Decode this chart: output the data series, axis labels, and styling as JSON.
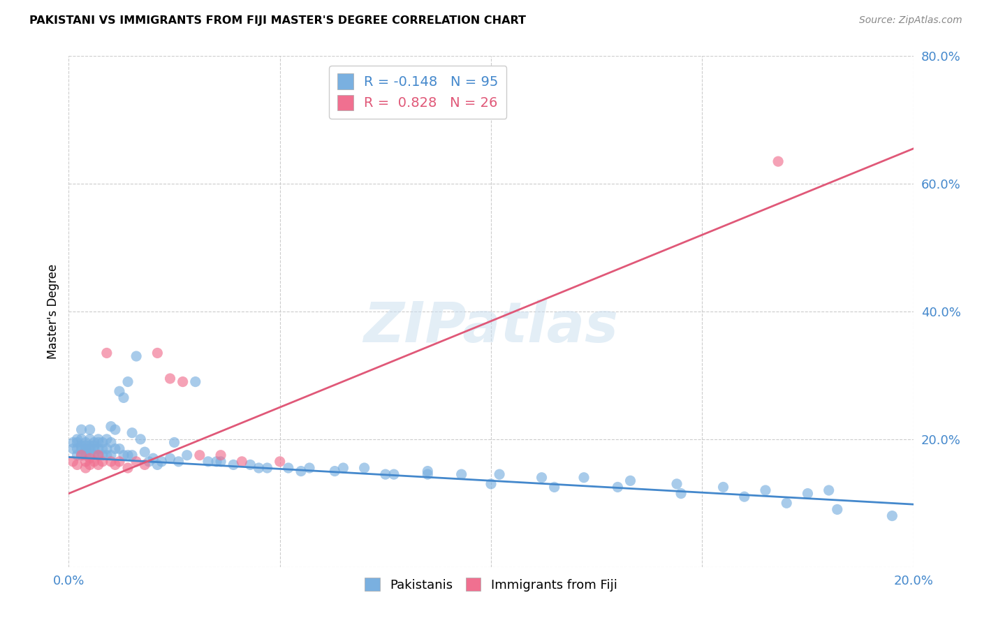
{
  "title": "PAKISTANI VS IMMIGRANTS FROM FIJI MASTER'S DEGREE CORRELATION CHART",
  "source": "Source: ZipAtlas.com",
  "ylabel": "Master's Degree",
  "xlim": [
    0.0,
    0.2
  ],
  "ylim": [
    0.0,
    0.8
  ],
  "xticks": [
    0.0,
    0.05,
    0.1,
    0.15,
    0.2
  ],
  "xticklabels": [
    "0.0%",
    "",
    "",
    "",
    "20.0%"
  ],
  "yticks": [
    0.0,
    0.2,
    0.4,
    0.6,
    0.8
  ],
  "yticklabels": [
    "",
    "20.0%",
    "40.0%",
    "60.0%",
    "80.0%"
  ],
  "blue_R": -0.148,
  "blue_N": 95,
  "pink_R": 0.828,
  "pink_N": 26,
  "blue_color": "#7ab0e0",
  "pink_color": "#f07090",
  "blue_line_color": "#4488cc",
  "pink_line_color": "#e05878",
  "tick_color": "#4488cc",
  "grid_color": "#cccccc",
  "watermark": "ZIPatlas",
  "legend_label_blue": "Pakistanis",
  "legend_label_pink": "Immigrants from Fiji",
  "blue_trend_x": [
    0.0,
    0.2
  ],
  "blue_trend_y": [
    0.172,
    0.098
  ],
  "pink_trend_x": [
    0.0,
    0.2
  ],
  "pink_trend_y": [
    0.115,
    0.655
  ],
  "blue_x": [
    0.001,
    0.001,
    0.002,
    0.002,
    0.002,
    0.002,
    0.003,
    0.003,
    0.003,
    0.003,
    0.003,
    0.004,
    0.004,
    0.004,
    0.004,
    0.004,
    0.005,
    0.005,
    0.005,
    0.005,
    0.005,
    0.006,
    0.006,
    0.006,
    0.006,
    0.007,
    0.007,
    0.007,
    0.007,
    0.008,
    0.008,
    0.008,
    0.009,
    0.009,
    0.009,
    0.01,
    0.01,
    0.01,
    0.011,
    0.011,
    0.012,
    0.012,
    0.013,
    0.013,
    0.014,
    0.014,
    0.015,
    0.015,
    0.016,
    0.017,
    0.018,
    0.019,
    0.02,
    0.021,
    0.022,
    0.024,
    0.026,
    0.028,
    0.03,
    0.033,
    0.036,
    0.039,
    0.043,
    0.047,
    0.052,
    0.057,
    0.063,
    0.07,
    0.077,
    0.085,
    0.093,
    0.102,
    0.112,
    0.122,
    0.133,
    0.144,
    0.155,
    0.165,
    0.175,
    0.18,
    0.025,
    0.035,
    0.045,
    0.055,
    0.065,
    0.075,
    0.085,
    0.1,
    0.115,
    0.13,
    0.145,
    0.16,
    0.17,
    0.182,
    0.195
  ],
  "blue_y": [
    0.195,
    0.185,
    0.2,
    0.195,
    0.175,
    0.185,
    0.2,
    0.19,
    0.185,
    0.175,
    0.215,
    0.195,
    0.185,
    0.18,
    0.19,
    0.175,
    0.2,
    0.19,
    0.185,
    0.175,
    0.215,
    0.195,
    0.185,
    0.175,
    0.19,
    0.2,
    0.185,
    0.195,
    0.175,
    0.195,
    0.185,
    0.175,
    0.2,
    0.185,
    0.175,
    0.22,
    0.195,
    0.175,
    0.215,
    0.185,
    0.275,
    0.185,
    0.265,
    0.175,
    0.29,
    0.175,
    0.21,
    0.175,
    0.33,
    0.2,
    0.18,
    0.165,
    0.17,
    0.16,
    0.165,
    0.17,
    0.165,
    0.175,
    0.29,
    0.165,
    0.165,
    0.16,
    0.16,
    0.155,
    0.155,
    0.155,
    0.15,
    0.155,
    0.145,
    0.15,
    0.145,
    0.145,
    0.14,
    0.14,
    0.135,
    0.13,
    0.125,
    0.12,
    0.115,
    0.12,
    0.195,
    0.165,
    0.155,
    0.15,
    0.155,
    0.145,
    0.145,
    0.13,
    0.125,
    0.125,
    0.115,
    0.11,
    0.1,
    0.09,
    0.08
  ],
  "pink_x": [
    0.001,
    0.002,
    0.003,
    0.004,
    0.004,
    0.005,
    0.005,
    0.006,
    0.007,
    0.007,
    0.008,
    0.009,
    0.01,
    0.011,
    0.012,
    0.014,
    0.016,
    0.018,
    0.021,
    0.024,
    0.027,
    0.031,
    0.036,
    0.041,
    0.05,
    0.168
  ],
  "pink_y": [
    0.165,
    0.16,
    0.175,
    0.165,
    0.155,
    0.17,
    0.16,
    0.165,
    0.175,
    0.16,
    0.165,
    0.335,
    0.165,
    0.16,
    0.165,
    0.155,
    0.165,
    0.16,
    0.335,
    0.295,
    0.29,
    0.175,
    0.175,
    0.165,
    0.165,
    0.635
  ]
}
